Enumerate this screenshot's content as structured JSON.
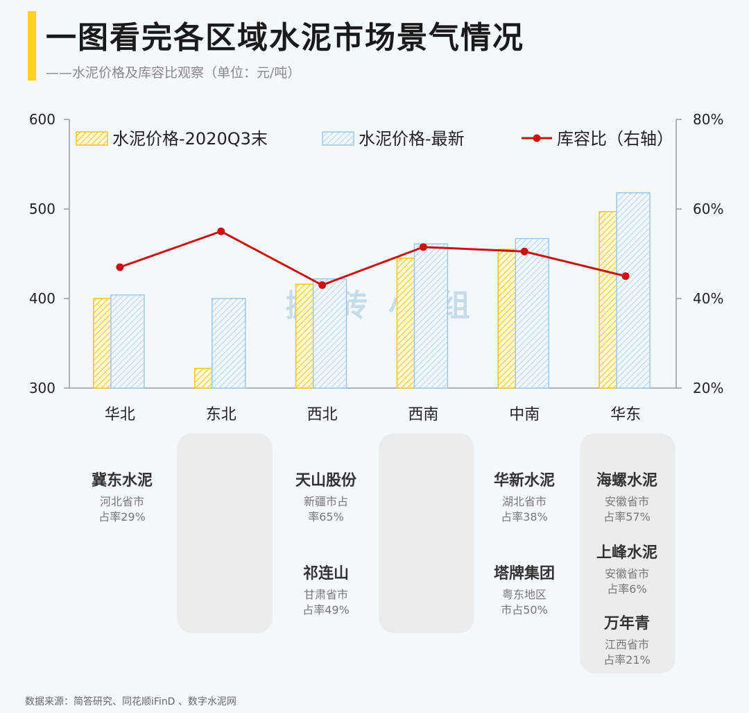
{
  "header": {
    "title": "一图看完各区域水泥市场景气情况",
    "subtitle": "——水泥价格及库容比观察（单位：元/吨）"
  },
  "colors": {
    "accent": "#ffd21f",
    "bar_q3": "#f5c518",
    "bar_latest": "#9fc8e6",
    "line": "#cc1111"
  },
  "chart_data": {
    "type": "bar",
    "categories": [
      "华北",
      "东北",
      "西北",
      "西南",
      "中南",
      "华东"
    ],
    "series": [
      {
        "name": "水泥价格-2020Q3末",
        "axis": "left",
        "values": [
          400,
          322,
          416,
          445,
          455,
          497
        ]
      },
      {
        "name": "水泥价格-最新",
        "axis": "left",
        "values": [
          404,
          400,
          422,
          461,
          467,
          518
        ]
      },
      {
        "name": "库容比（右轴）",
        "type": "line",
        "axis": "right",
        "values": [
          47,
          55,
          43,
          51.5,
          50.5,
          45
        ]
      }
    ],
    "yleft": {
      "min": 300,
      "max": 600,
      "ticks": [
        "300",
        "400",
        "500",
        "600"
      ]
    },
    "yright": {
      "min": 20,
      "max": 80,
      "ticks": [
        "20%",
        "40%",
        "60%",
        "80%"
      ]
    },
    "legend_position": "top",
    "watermark": "搬砖小组"
  },
  "companies": [
    {
      "name": "冀东水泥",
      "desc1": "河北省市",
      "desc2": "占率29%"
    },
    {
      "name": "天山股份",
      "desc1": "新疆市占",
      "desc2": "率65%"
    },
    {
      "name": "祁连山",
      "desc1": "甘肃省市",
      "desc2": "占率49%"
    },
    {
      "name": "华新水泥",
      "desc1": "湖北省市",
      "desc2": "占率38%"
    },
    {
      "name": "塔牌集团",
      "desc1": "粤东地区",
      "desc2": "市占50%"
    },
    {
      "name": "海螺水泥",
      "desc1": "安徽省市",
      "desc2": "占率57%"
    },
    {
      "name": "上峰水泥",
      "desc1": "安徽省市",
      "desc2": "占率6%"
    },
    {
      "name": "万年青",
      "desc1": "江西省市",
      "desc2": "占率21%"
    }
  ],
  "source": "数据来源：简答研究、同花顺iFinD 、数字水泥网"
}
